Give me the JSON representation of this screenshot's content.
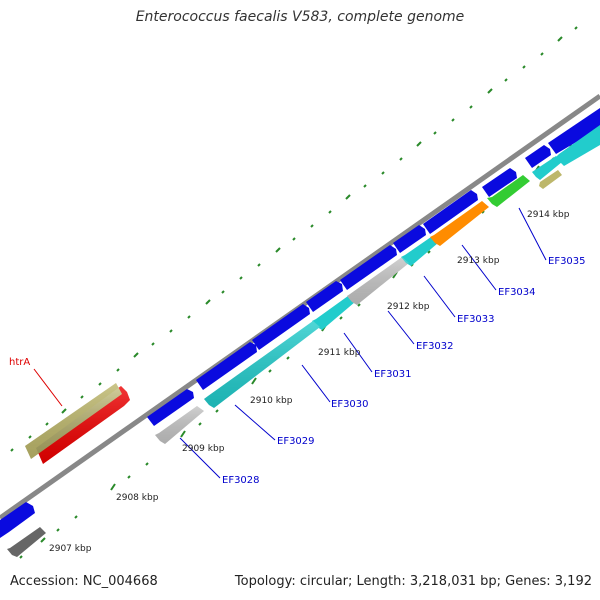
{
  "title": "Enterococcus faecalis V583, complete genome",
  "footer": {
    "accession": "Accession: NC_004668",
    "summary": "Topology: circular; Length: 3,218,031 bp; Genes: 3,192"
  },
  "colors": {
    "backbone": "#888888",
    "ticks": "#2a8a2a",
    "label_blue": "#0000cc",
    "label_red": "#dd0000",
    "cds_blue": "#0a0adf",
    "cds_cyan": "#22cccc",
    "cds_light_gray": "#c4c4c4",
    "cds_orange": "#ff8c00",
    "cds_green": "#33cc33",
    "cds_khaki": "#bdb76b",
    "cds_red": "#ee0000",
    "cds_dark_gray": "#666666"
  },
  "scale_labels": [
    "2907 kbp",
    "2908 kbp",
    "2909 kbp",
    "2910 kbp",
    "2911 kbp",
    "2912 kbp",
    "2913 kbp",
    "2914 kbp"
  ],
  "gene_labels": {
    "htrA": "htrA",
    "EF3028": "EF3028",
    "EF3029": "EF3029",
    "EF3030": "EF3030",
    "EF3031": "EF3031",
    "EF3032": "EF3032",
    "EF3033": "EF3033",
    "EF3034": "EF3034",
    "EF3035": "EF3035"
  }
}
